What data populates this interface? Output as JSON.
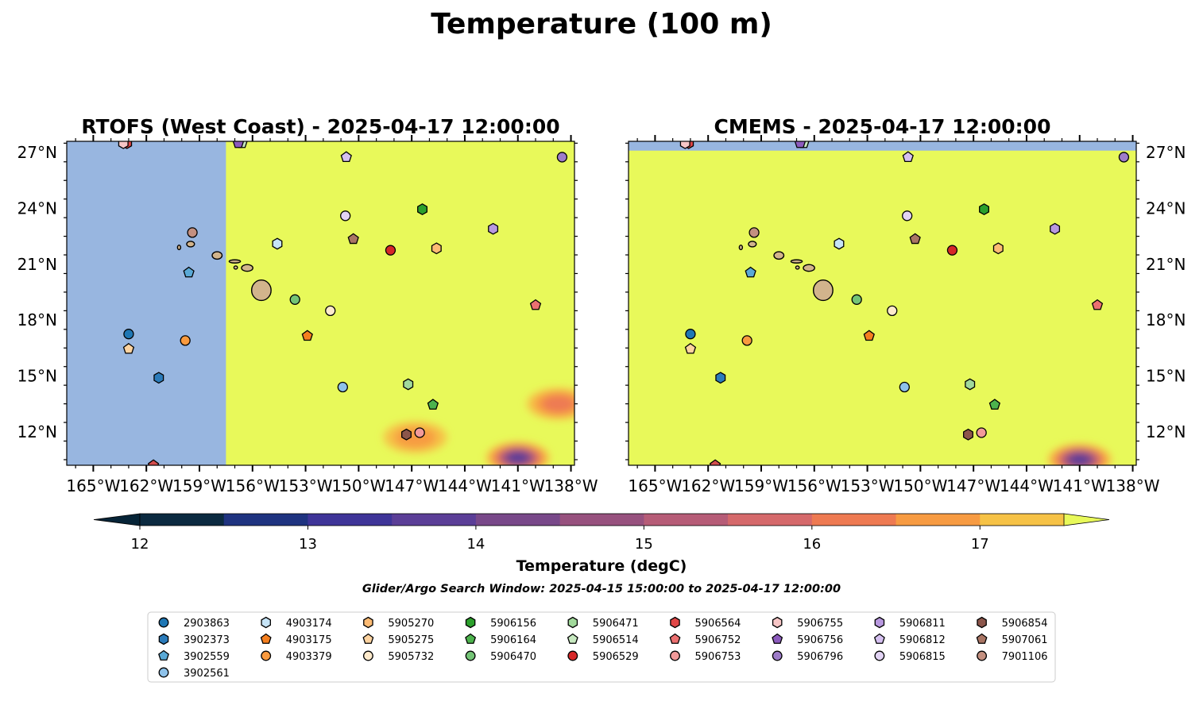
{
  "page": {
    "suptitle": "Temperature (100 m)",
    "search_window": "Glider/Argo Search Window: 2025-04-15 15:00:00 to 2025-04-17 12:00:00"
  },
  "colors": {
    "land": "#d2b48c",
    "no_data": "#98b6e0",
    "warm_field": "#e8f95a"
  },
  "chart_data": [
    {
      "type": "heatmap",
      "title": "RTOFS (West Coast) - 2025-04-17 12:00:00",
      "xlim": [
        -166.5,
        -137.8
      ],
      "ylim": [
        10.2,
        27.6
      ],
      "x_ticks": [
        "165°W",
        "162°W",
        "159°W",
        "156°W",
        "153°W",
        "150°W",
        "147°W",
        "144°W",
        "141°W",
        "138°W"
      ],
      "x_tick_values": [
        -165,
        -162,
        -159,
        -156,
        -153,
        -150,
        -147,
        -144,
        -141,
        -138
      ],
      "y_ticks": [
        "12°N",
        "15°N",
        "18°N",
        "21°N",
        "24°N",
        "27°N"
      ],
      "y_tick_values": [
        12,
        15,
        18,
        21,
        24,
        27
      ],
      "y_tick_side": "left",
      "no_data_region": {
        "lon": [
          -166.5,
          -157.5
        ],
        "lat": [
          10.2,
          27.6
        ]
      },
      "cool_features": [
        {
          "lon": -141.0,
          "lat": 10.6,
          "min_temp": 13.8
        },
        {
          "lon": -146.8,
          "lat": 11.7,
          "min_temp": 16.2
        },
        {
          "lon": -138.7,
          "lat": 13.5,
          "min_temp": 16.0
        }
      ]
    },
    {
      "type": "heatmap",
      "title": "CMEMS - 2025-04-17 12:00:00",
      "xlim": [
        -166.5,
        -137.8
      ],
      "ylim": [
        10.2,
        27.6
      ],
      "x_ticks": [
        "165°W",
        "162°W",
        "159°W",
        "156°W",
        "153°W",
        "150°W",
        "147°W",
        "144°W",
        "141°W",
        "138°W"
      ],
      "x_tick_values": [
        -165,
        -162,
        -159,
        -156,
        -153,
        -150,
        -147,
        -144,
        -141,
        -138
      ],
      "y_ticks": [
        "12°N",
        "15°N",
        "18°N",
        "21°N",
        "24°N",
        "27°N"
      ],
      "y_tick_values": [
        12,
        15,
        18,
        21,
        24,
        27
      ],
      "y_tick_side": "right",
      "no_data_region": {
        "lon": [
          -166.5,
          -137.8
        ],
        "lat": [
          27.1,
          27.6
        ]
      },
      "cool_features": [
        {
          "lon": -141.0,
          "lat": 10.5,
          "min_temp": 13.8
        }
      ]
    }
  ],
  "colorbar": {
    "label": "Temperature (degC)",
    "min": 11.75,
    "max": 17.75,
    "extend": "both",
    "tick_values": [
      12,
      13,
      14,
      15,
      16,
      17
    ],
    "ticks": [
      "12",
      "13",
      "14",
      "15",
      "16",
      "17"
    ],
    "bands": [
      {
        "from": 11.75,
        "to": 12.0,
        "color": "#062437"
      },
      {
        "from": 12.0,
        "to": 12.5,
        "color": "#0b2a40"
      },
      {
        "from": 12.5,
        "to": 13.0,
        "color": "#1f3380"
      },
      {
        "from": 13.0,
        "to": 13.5,
        "color": "#3e3498"
      },
      {
        "from": 13.5,
        "to": 14.0,
        "color": "#5b3e97"
      },
      {
        "from": 14.0,
        "to": 14.5,
        "color": "#784889"
      },
      {
        "from": 14.5,
        "to": 15.0,
        "color": "#97517e"
      },
      {
        "from": 15.0,
        "to": 15.5,
        "color": "#b65c77"
      },
      {
        "from": 15.5,
        "to": 16.0,
        "color": "#d5696b"
      },
      {
        "from": 16.0,
        "to": 16.5,
        "color": "#ee7a52"
      },
      {
        "from": 16.5,
        "to": 17.0,
        "color": "#f79b42"
      },
      {
        "from": 17.0,
        "to": 17.5,
        "color": "#f6c246"
      },
      {
        "from": 17.5,
        "to": 17.75,
        "color": "#e8f95a"
      }
    ]
  },
  "islands": [
    {
      "name": "Hawaii",
      "lon": -155.5,
      "lat": 19.6,
      "r_lon": 0.55,
      "r_lat": 0.55
    },
    {
      "name": "Maui",
      "lon": -156.3,
      "lat": 20.8,
      "r_lon": 0.32,
      "r_lat": 0.18
    },
    {
      "name": "Molokai",
      "lon": -157.0,
      "lat": 21.15,
      "r_lon": 0.32,
      "r_lat": 0.07
    },
    {
      "name": "Lanai",
      "lon": -156.95,
      "lat": 20.82,
      "r_lon": 0.1,
      "r_lat": 0.08
    },
    {
      "name": "Oahu",
      "lon": -158.0,
      "lat": 21.47,
      "r_lon": 0.28,
      "r_lat": 0.2
    },
    {
      "name": "Kauai",
      "lon": -159.5,
      "lat": 22.08,
      "r_lon": 0.22,
      "r_lat": 0.15
    },
    {
      "name": "Niihau",
      "lon": -160.15,
      "lat": 21.9,
      "r_lon": 0.08,
      "r_lat": 0.12
    }
  ],
  "floats": [
    {
      "id": "2903863",
      "lon": -163.0,
      "lat": 17.25,
      "marker": "circle",
      "color": "#1f77b4"
    },
    {
      "id": "3902373",
      "lon": -161.3,
      "lat": 14.9,
      "marker": "hexagon",
      "color": "#2b7bba"
    },
    {
      "id": "3902559",
      "lon": -159.6,
      "lat": 20.55,
      "marker": "pentagon",
      "color": "#5aa9d6"
    },
    {
      "id": "3902561",
      "lon": -150.9,
      "lat": 14.4,
      "marker": "circle",
      "color": "#8ec2ea"
    },
    {
      "id": "4903174",
      "lon": -154.6,
      "lat": 22.1,
      "marker": "hexagon",
      "color": "#c6e4f7"
    },
    {
      "id": "4903175",
      "lon": -152.9,
      "lat": 17.15,
      "marker": "pentagon",
      "color": "#f57f1f"
    },
    {
      "id": "4903379",
      "lon": -159.8,
      "lat": 16.9,
      "marker": "circle",
      "color": "#f99a3f"
    },
    {
      "id": "5905270",
      "lon": -145.6,
      "lat": 21.85,
      "marker": "hexagon",
      "color": "#fdbb74"
    },
    {
      "id": "5905275",
      "lon": -163.0,
      "lat": 16.45,
      "marker": "pentagon",
      "color": "#fdd3a0"
    },
    {
      "id": "5905732",
      "lon": -151.6,
      "lat": 18.5,
      "marker": "circle",
      "color": "#feeacb"
    },
    {
      "id": "5906156",
      "lon": -146.4,
      "lat": 23.95,
      "marker": "hexagon",
      "color": "#2ca02c"
    },
    {
      "id": "5906164",
      "lon": -145.8,
      "lat": 13.45,
      "marker": "pentagon",
      "color": "#4db34d"
    },
    {
      "id": "5906470",
      "lon": -153.6,
      "lat": 19.1,
      "marker": "circle",
      "color": "#74c476"
    },
    {
      "id": "5906471",
      "lon": -147.2,
      "lat": 14.55,
      "marker": "hexagon",
      "color": "#a1d99b"
    },
    {
      "id": "5906514",
      "lon": -156.6,
      "lat": 27.5,
      "marker": "pentagon",
      "color": "#c7e9c0"
    },
    {
      "id": "5906529",
      "lon": -148.2,
      "lat": 21.75,
      "marker": "circle",
      "color": "#d62728"
    },
    {
      "id": "5906564",
      "lon": -163.1,
      "lat": 27.5,
      "marker": "hexagon",
      "color": "#e04646"
    },
    {
      "id": "5906752",
      "lon": -140.0,
      "lat": 18.8,
      "marker": "pentagon",
      "color": "#ec7070"
    },
    {
      "id": "5906753",
      "lon": -146.55,
      "lat": 11.95,
      "marker": "circle",
      "color": "#f29a9a"
    },
    {
      "id": "5906755",
      "lon": -163.3,
      "lat": 27.5,
      "marker": "hexagon",
      "color": "#f7c6c6"
    },
    {
      "id": "5906756",
      "lon": -156.8,
      "lat": 27.5,
      "marker": "pentagon",
      "color": "#8c5bbd"
    },
    {
      "id": "5906796",
      "lon": -138.5,
      "lat": 26.75,
      "marker": "circle",
      "color": "#9e7cc9"
    },
    {
      "id": "5906811",
      "lon": -142.4,
      "lat": 22.9,
      "marker": "hexagon",
      "color": "#b898df"
    },
    {
      "id": "5906812",
      "lon": -150.7,
      "lat": 26.75,
      "marker": "pentagon",
      "color": "#d5c0f0"
    },
    {
      "id": "5906815",
      "lon": -150.75,
      "lat": 23.6,
      "marker": "circle",
      "color": "#e2d3f4"
    },
    {
      "id": "5906854",
      "lon": -147.3,
      "lat": 11.85,
      "marker": "hexagon",
      "color": "#8c564b"
    },
    {
      "id": "5907061",
      "lon": -150.3,
      "lat": 22.35,
      "marker": "pentagon",
      "color": "#a97564"
    },
    {
      "id": "7901106",
      "lon": -159.4,
      "lat": 22.7,
      "marker": "circle",
      "color": "#c49080"
    },
    {
      "id": "x",
      "lon": -161.6,
      "lat": 10.2,
      "marker": "pentagon",
      "color": "#d44d4d"
    }
  ],
  "legend": {
    "columns": [
      [
        "2903863",
        "3902373",
        "3902559",
        "3902561"
      ],
      [
        "4903174",
        "4903175",
        "4903379"
      ],
      [
        "5905270",
        "5905275",
        "5905732"
      ],
      [
        "5906156",
        "5906164",
        "5906470"
      ],
      [
        "5906471",
        "5906514",
        "5906529"
      ],
      [
        "5906564",
        "5906752",
        "5906753"
      ],
      [
        "5906755",
        "5906756",
        "5906796"
      ],
      [
        "5906811",
        "5906812",
        "5906815"
      ],
      [
        "5906854",
        "5907061",
        "7901106"
      ]
    ]
  }
}
